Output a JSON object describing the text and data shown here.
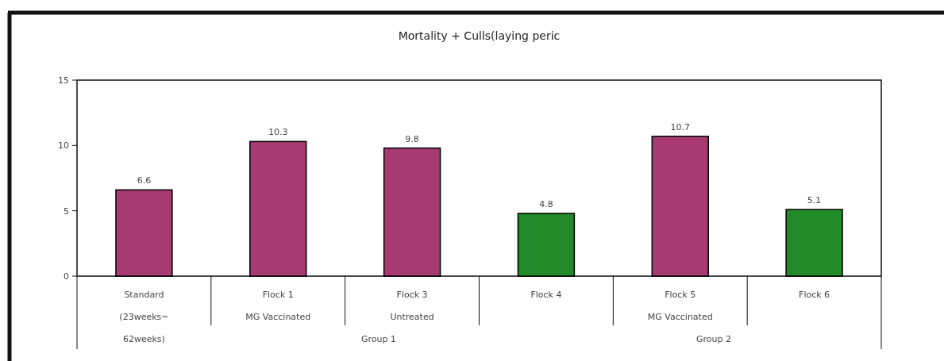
{
  "chart_data": {
    "type": "bar",
    "title": "Mortality + Culls(laying peric",
    "categories": [
      "Standard\n(23weeks~\n62weeks)",
      "Flock 1\nMG Vaccinated",
      "Flock 3\nUntreated",
      "Flock 4",
      "Flock 5\nMG Vaccinated",
      "Flock 6"
    ],
    "values": [
      6.6,
      10.3,
      9.8,
      4.8,
      10.7,
      5.1
    ],
    "colors": [
      "#a83a72",
      "#a83a72",
      "#a83a72",
      "#238a2a",
      "#a83a72",
      "#238a2a"
    ],
    "ylim": [
      0,
      15
    ],
    "yticks": [
      0,
      5,
      10,
      15
    ],
    "data_labels": true,
    "grid": false,
    "annotations": [
      "Group 1",
      "Group 2"
    ]
  }
}
